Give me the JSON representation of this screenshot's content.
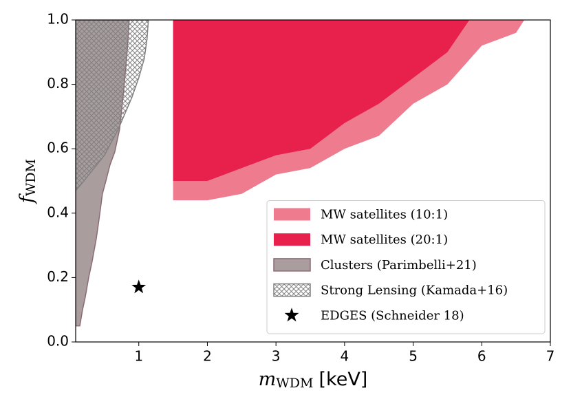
{
  "chart_data": {
    "type": "area",
    "xlabel": {
      "symbol": "m",
      "subscript": "WDM",
      "unit": "[keV]"
    },
    "ylabel": {
      "symbol": "f",
      "subscript": "WDM"
    },
    "xlim": [
      0.08,
      7
    ],
    "ylim": [
      0,
      1
    ],
    "xticks": [
      1,
      2,
      3,
      4,
      5,
      6,
      7
    ],
    "yticks": [
      {
        "value": 0,
        "label": "0.0"
      },
      0.2,
      0.4,
      0.6,
      0.8,
      {
        "value": 1,
        "label": "1.0"
      }
    ],
    "legend": "lower right",
    "series": [
      {
        "name": "MW satellites (10:1)",
        "color": "#ef7b8f",
        "x": [
          1.5,
          1.5,
          2,
          2.5,
          3,
          3.5,
          4,
          4.5,
          5,
          5.5,
          6,
          6.5,
          6.62
        ],
        "values": [
          1.0,
          0.44,
          0.44,
          0.46,
          0.52,
          0.54,
          0.6,
          0.64,
          0.74,
          0.8,
          0.92,
          0.96,
          1.0
        ]
      },
      {
        "name": "MW satellites (20:1)",
        "color": "#e8204c",
        "x": [
          1.5,
          1.5,
          2,
          2.5,
          3,
          3.5,
          4,
          4.5,
          5,
          5.5,
          5.82
        ],
        "values": [
          1.0,
          0.5,
          0.5,
          0.54,
          0.58,
          0.6,
          0.68,
          0.74,
          0.82,
          0.9,
          1.0
        ]
      },
      {
        "name": "Clusters (Parimbelli+21)",
        "color": "#a99d9e",
        "edgecolor": "#8b6a73",
        "x": [
          0.14,
          0.18,
          0.22,
          0.27,
          0.32,
          0.38,
          0.42,
          0.47,
          0.52,
          0.58,
          0.65,
          0.72,
          0.78,
          0.83,
          0.86,
          0.08,
          0.08
        ],
        "values": [
          0.05,
          0.1,
          0.14,
          0.2,
          0.25,
          0.32,
          0.38,
          0.46,
          0.5,
          0.55,
          0.59,
          0.66,
          0.78,
          0.9,
          1.0,
          1.0,
          0.05
        ]
      },
      {
        "name": "Strong Lensing (Kamada+16)",
        "color": "#ffffff",
        "edgecolor": "#808080",
        "hatch": true,
        "x": [
          0.08,
          0.2,
          0.35,
          0.5,
          0.6,
          0.7,
          0.8,
          0.9,
          1.0,
          1.08,
          1.12,
          1.14,
          0.08
        ],
        "values": [
          0.47,
          0.5,
          0.54,
          0.58,
          0.62,
          0.66,
          0.71,
          0.76,
          0.82,
          0.88,
          0.94,
          1.0,
          1.0
        ]
      },
      {
        "name": "EDGES (Schneider 18)",
        "color": "#000000",
        "marker": "star",
        "x": [
          1
        ],
        "values": [
          0.17
        ]
      }
    ]
  }
}
